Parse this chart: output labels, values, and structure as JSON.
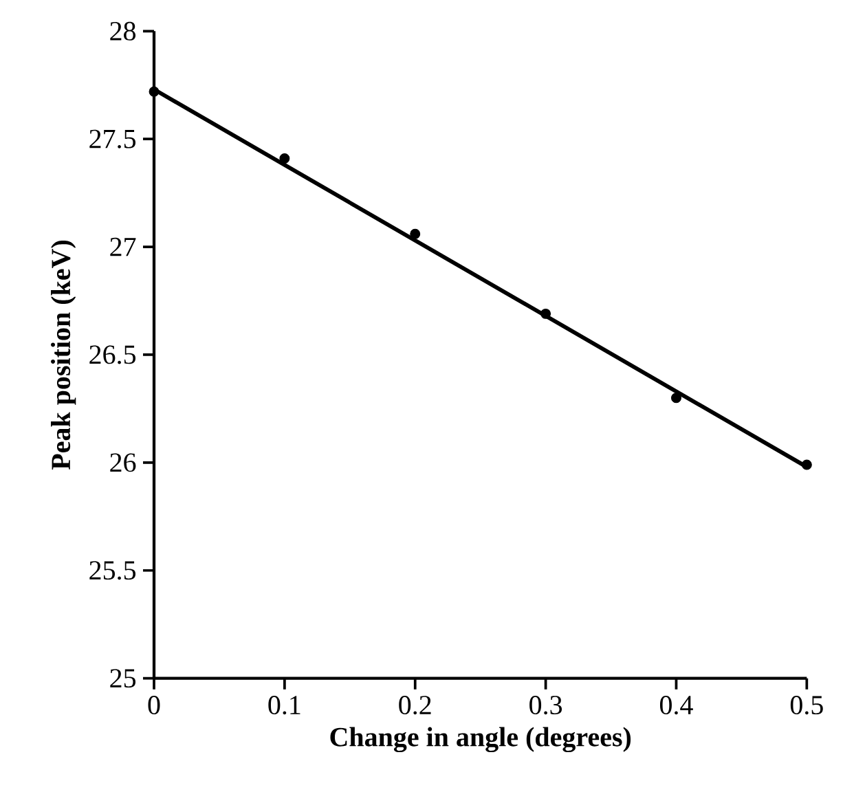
{
  "chart_data": {
    "type": "scatter",
    "xlabel": "Change in angle (degrees)",
    "ylabel": "Peak position (keV)",
    "xlim": [
      0,
      0.5
    ],
    "ylim": [
      25,
      28
    ],
    "xticks": [
      0,
      0.1,
      0.2,
      0.3,
      0.4,
      0.5
    ],
    "yticks": [
      25,
      25.5,
      26,
      26.5,
      27,
      27.5,
      28
    ],
    "grid": false,
    "series": [
      {
        "color": "#000000",
        "marker": "circle",
        "x": [
          0,
          0.1,
          0.2,
          0.3,
          0.4,
          0.5
        ],
        "values": [
          27.72,
          27.41,
          27.06,
          26.69,
          26.3,
          25.99
        ]
      },
      {
        "type": "line",
        "color": "#000000",
        "marker": "none",
        "line_style": "solid",
        "x": [
          0,
          0.5
        ],
        "values": [
          27.73,
          25.98
        ]
      }
    ]
  }
}
